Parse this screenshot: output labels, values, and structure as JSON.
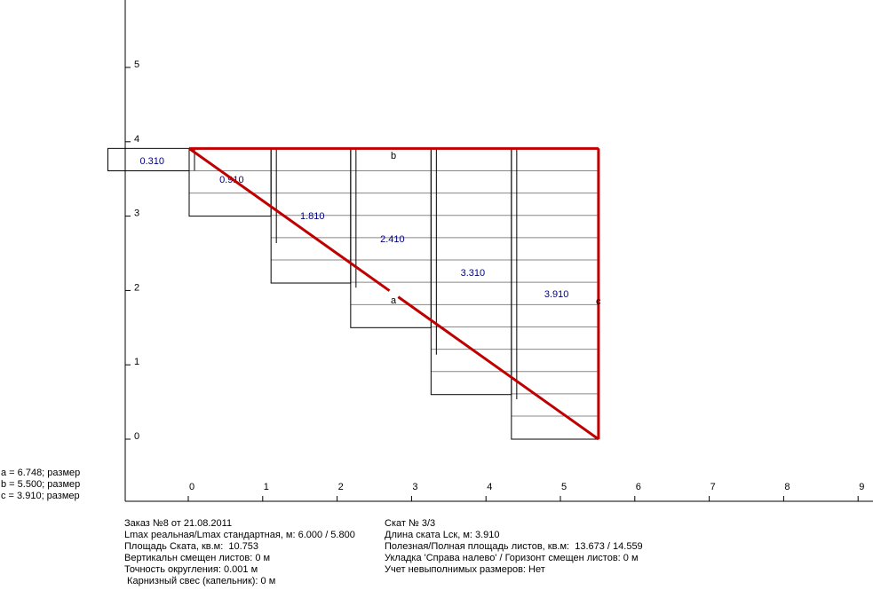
{
  "dimensions": [
    "a = 6.748; размер",
    "b = 5.500; размер",
    "c = 3.910; размер"
  ],
  "axes": {
    "x_ticks": [
      "0",
      "1",
      "2",
      "3",
      "4",
      "5",
      "6",
      "7",
      "8",
      "9"
    ],
    "y_ticks": [
      "0",
      "1",
      "2",
      "3",
      "4",
      "5"
    ]
  },
  "roof": {
    "width_b": 5.5,
    "height_c": 3.91,
    "labels": {
      "a": "a",
      "b": "b",
      "c": "c"
    },
    "line_color": "#c00000"
  },
  "sheets": [
    {
      "x0": 0,
      "x1": 1.1,
      "length": 0.91,
      "label": "0.910"
    },
    {
      "x0": 1.1,
      "x1": 2.17,
      "length": 1.81,
      "label": "1.810"
    },
    {
      "x0": 2.17,
      "x1": 3.25,
      "length": 2.41,
      "label": "2.410"
    },
    {
      "x0": 3.25,
      "x1": 4.33,
      "length": 3.31,
      "label": "3.310"
    },
    {
      "x0": 4.33,
      "x1": 5.5,
      "length": 3.91,
      "label": "3.910"
    }
  ],
  "overhang_sheet": {
    "x0": -1.08,
    "x1": 0,
    "length": 0.31,
    "label": "0.310"
  },
  "label_color": "#000080",
  "info_left": [
    "Заказ №8 от 21.08.2011",
    "Lmax реальная/Lmax стандартная, м: 6.000 / 5.800",
    "Площадь Ската, кв.м:  10.753",
    "Вертикальн смещен листов: 0 м",
    "Точность округления: 0.001 м",
    " Карнизный свес (капельник): 0 м"
  ],
  "info_right": [
    "Скат № 3/3",
    "Длина ската Lск, м: 3.910",
    "Полезная/Полная площадь листов, кв.м:  13.673 / 14.559",
    "Укладка 'Справа налево' / Горизонт смещен листов: 0 м",
    "Учет невыполнимых размеров: Нет"
  ]
}
